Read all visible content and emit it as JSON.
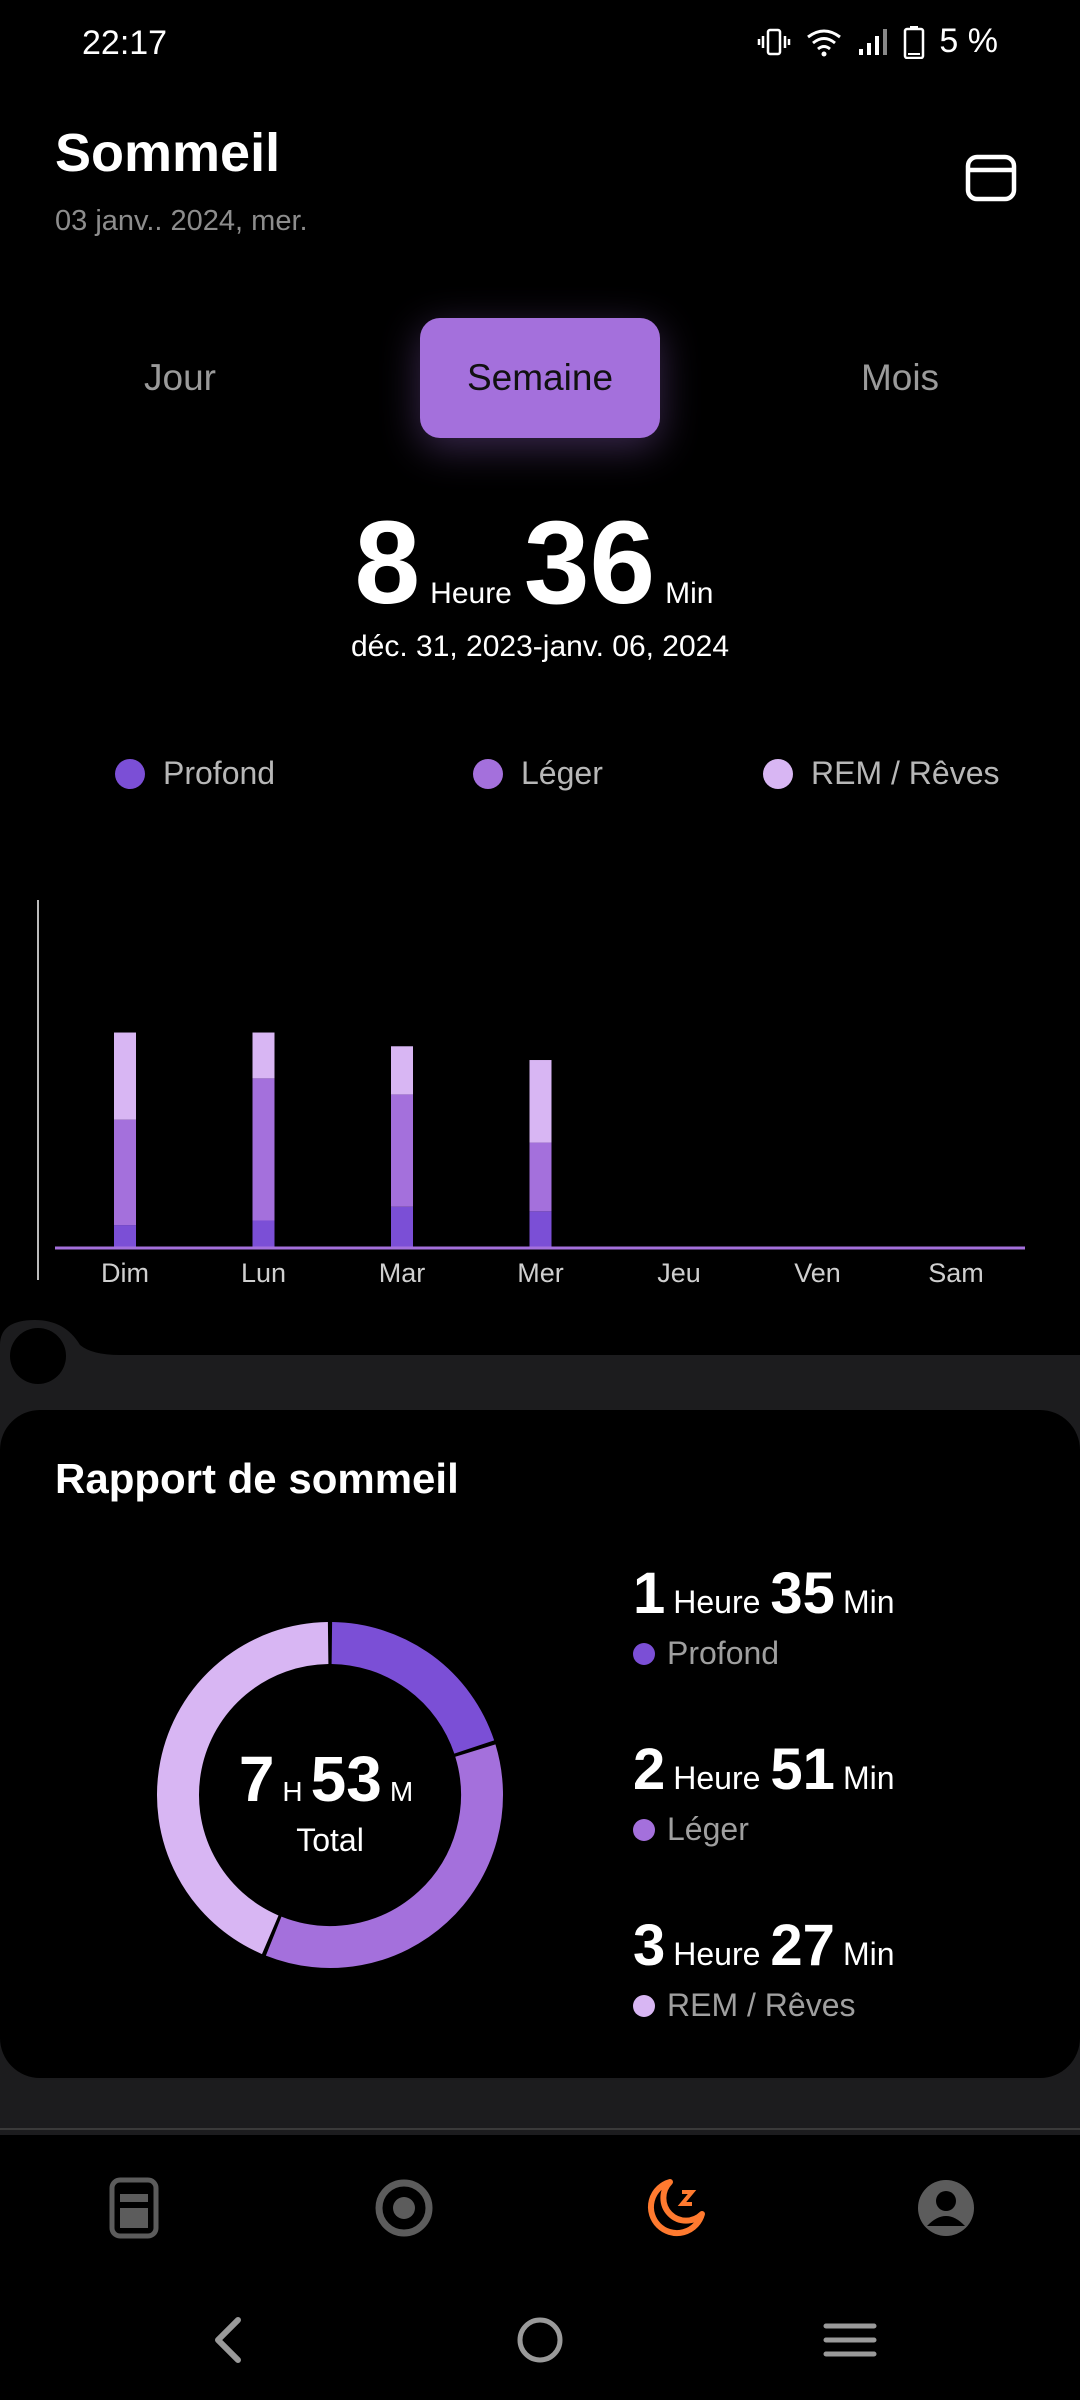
{
  "status_bar": {
    "time": "22:17",
    "battery": "5 %"
  },
  "header": {
    "title": "Sommeil",
    "date": "03 janv.. 2024, mer."
  },
  "tabs": [
    {
      "label": "Jour"
    },
    {
      "label": "Semaine",
      "active": true
    },
    {
      "label": "Mois"
    }
  ],
  "summary": {
    "hours": "8",
    "hours_unit": "Heure",
    "minutes": "36",
    "minutes_unit": "Min",
    "range": "déc. 31, 2023-janv. 06, 2024"
  },
  "legend": [
    {
      "label": "Profond",
      "color": "#7b4fd6"
    },
    {
      "label": "Léger",
      "color": "#a470dc"
    },
    {
      "label": "REM / Rêves",
      "color": "#d8b6f3"
    }
  ],
  "chart_data": {
    "type": "bar",
    "stacked": true,
    "categories": [
      "Dim",
      "Lun",
      "Mar",
      "Mer",
      "Jeu",
      "Ven",
      "Sam"
    ],
    "series": [
      {
        "name": "Profond",
        "color": "#7b4fd6",
        "values": [
          1.0,
          1.2,
          1.8,
          1.6,
          0,
          0,
          0
        ]
      },
      {
        "name": "Léger",
        "color": "#a470dc",
        "values": [
          4.6,
          6.2,
          4.9,
          3.0,
          0,
          0,
          0
        ]
      },
      {
        "name": "REM / Rêves",
        "color": "#d8b6f3",
        "values": [
          3.8,
          2.0,
          2.1,
          3.6,
          0,
          0,
          0
        ]
      }
    ],
    "ylim": [
      0,
      13
    ],
    "grid": false,
    "legend": "top"
  },
  "report": {
    "title": "Rapport de sommeil",
    "total_hours": "7",
    "total_hours_unit": "H",
    "total_minutes": "53",
    "total_minutes_unit": "M",
    "total_label": "Total",
    "stats": [
      {
        "hours": "1",
        "hours_unit": "Heure",
        "minutes": "35",
        "minutes_unit": "Min",
        "label": "Profond",
        "color": "#7b4fd6"
      },
      {
        "hours": "2",
        "hours_unit": "Heure",
        "minutes": "51",
        "minutes_unit": "Min",
        "label": "Léger",
        "color": "#a470dc"
      },
      {
        "hours": "3",
        "hours_unit": "Heure",
        "minutes": "27",
        "minutes_unit": "Min",
        "label": "REM / Rêves",
        "color": "#d8b6f3"
      }
    ]
  },
  "nav": [
    {
      "icon": "dashboard-icon"
    },
    {
      "icon": "workout-icon"
    },
    {
      "icon": "sleep-icon",
      "active": true,
      "color": "#ff7a2f"
    },
    {
      "icon": "profile-icon"
    }
  ]
}
